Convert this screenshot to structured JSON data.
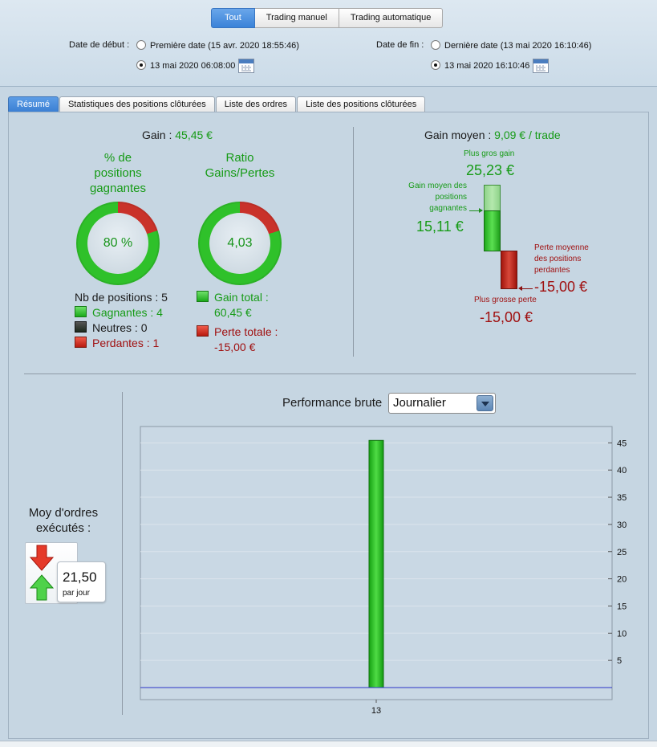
{
  "toolbar": {
    "tabs": [
      "Tout",
      "Trading manuel",
      "Trading automatique"
    ]
  },
  "dates": {
    "start_label": "Date de début :",
    "start_first": "Première date (15 avr. 2020 18:55:46)",
    "start_custom": "13 mai 2020 06:08:00",
    "end_label": "Date de fin :",
    "end_last": "Dernière date (13 mai 2020 16:10:46)",
    "end_custom": "13 mai 2020 16:10:46"
  },
  "tabs": [
    "Résumé",
    "Statistiques des positions clôturées",
    "Liste des ordres",
    "Liste des positions clôturées"
  ],
  "summary": {
    "gain_label": "Gain :",
    "gain_value": "45,45 €",
    "win_pct_title": "% de positions gagnantes",
    "win_pct_title_lines": [
      "% de",
      "positions",
      "gagnantes"
    ],
    "win_pct_value": "80 %",
    "win_pct_fraction": 0.8,
    "ratio_title_lines": [
      "Ratio",
      "Gains/Pertes"
    ],
    "ratio_value": "4,03",
    "ratio_fraction": 0.8,
    "nb_positions": "Nb de positions : 5",
    "gagnantes": "Gagnantes : 4",
    "neutres": "Neutres : 0",
    "perdantes": "Perdantes : 1",
    "gain_total_lines": [
      "Gain total :",
      "60,45 €"
    ],
    "perte_totale_lines": [
      "Perte totale :",
      "-15,00 €"
    ],
    "gain_moyen_label": "Gain moyen :",
    "gain_moyen_value": "9,09 € / trade",
    "plus_gros_gain_label": "Plus gros gain",
    "plus_gros_gain_value": "25,23 €",
    "gain_moyen_gagnantes_lines": [
      "Gain moyen des",
      "positions",
      "gagnantes"
    ],
    "gain_moyen_gagnantes_value": "15,11 €",
    "perte_moyenne_lines": [
      "Perte moyenne",
      "des positions",
      "perdantes"
    ],
    "perte_moyenne_value": "-15,00 €",
    "plus_grosse_perte_label": "Plus grosse perte",
    "plus_grosse_perte_value": "-15,00 €",
    "moy_ordres_lines": [
      "Moy d'ordres",
      "exécutés :"
    ],
    "moy_ordres_value": "21,50",
    "moy_ordres_unit": "par jour"
  },
  "performance": {
    "label": "Performance brute",
    "select_value": "Journalier"
  },
  "colors": {
    "green": "#169b16",
    "red": "#a01010",
    "accent": "#3a82d8"
  },
  "chart_data": {
    "type": "bar",
    "categories": [
      "13"
    ],
    "values": [
      45.45
    ],
    "ylim": [
      0,
      50
    ],
    "yticks": [
      5,
      10,
      15,
      20,
      25,
      30,
      35,
      40,
      45
    ],
    "grid": true
  }
}
